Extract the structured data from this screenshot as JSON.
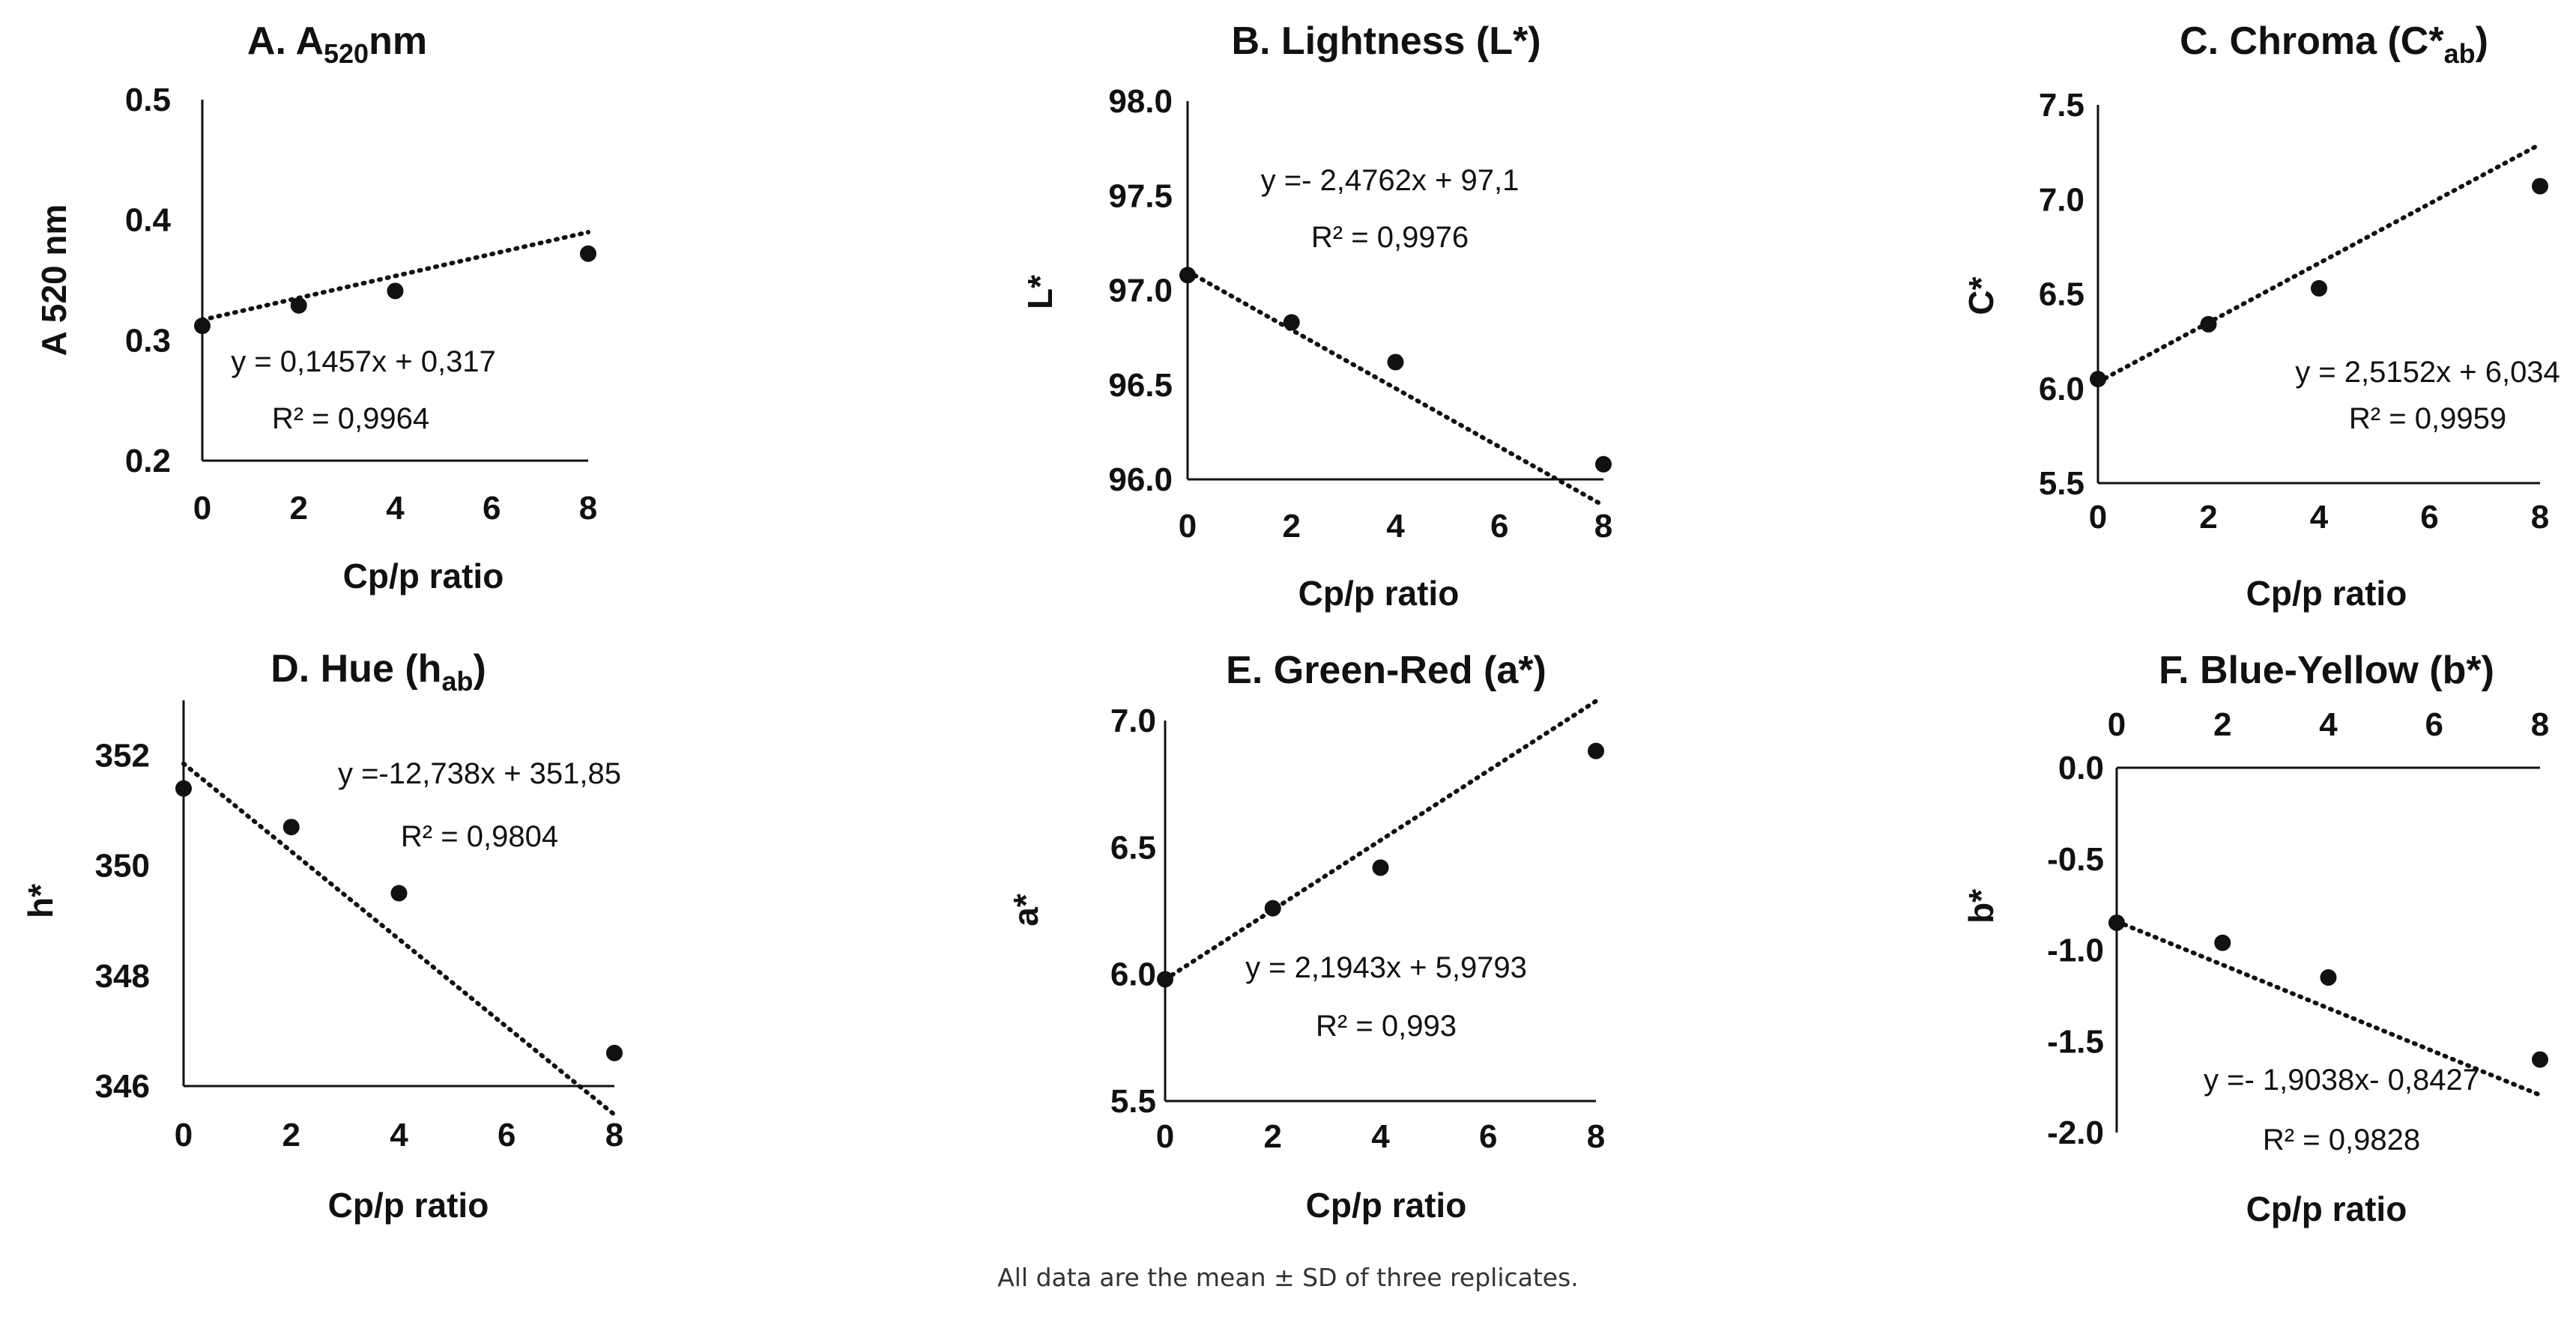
{
  "footnote": "All data are the mean ± SD of three replicates.",
  "colors": {
    "ink": "#111111",
    "background": "#ffffff"
  },
  "chart_data": [
    {
      "type": "scatter",
      "title": "A. A",
      "title_subscript": "520",
      "title_suffix": "nm",
      "xlabel": "Cp/p ratio",
      "ylabel": "A 520 nm",
      "x_ticks": [
        "0",
        "2",
        "4",
        "6",
        "8"
      ],
      "y_ticks": [
        "0.2",
        "0.3",
        "0.4",
        "0.5"
      ],
      "xlim": [
        0,
        8
      ],
      "ylim": [
        0.2,
        0.5
      ],
      "x_axis_position": "bottom",
      "x": [
        0,
        2,
        4,
        8
      ],
      "y": [
        0.312,
        0.329,
        0.341,
        0.372
      ],
      "trendline": {
        "slope": 0.1457,
        "intercept": 0.317,
        "x_scale": 0.0625
      },
      "equation": "y = 0,1457x + 0,317",
      "r2": "R² = 0,9964",
      "grid": false
    },
    {
      "type": "scatter",
      "title": "B. Lightness (L*)",
      "xlabel": "Cp/p ratio",
      "ylabel": "L*",
      "x_ticks": [
        "0",
        "2",
        "4",
        "6",
        "8"
      ],
      "y_ticks": [
        "96.0",
        "96.5",
        "97.0",
        "97.5",
        "98.0"
      ],
      "xlim": [
        0,
        8
      ],
      "ylim": [
        96.0,
        98.0
      ],
      "x_axis_position": "bottom",
      "x": [
        0,
        2,
        4,
        8
      ],
      "y": [
        97.08,
        96.83,
        96.62,
        96.08
      ],
      "trendline": {
        "slope": -2.4762,
        "intercept": 97.1,
        "x_scale": 0.0625
      },
      "equation": "y =- 2,4762x + 97,1",
      "r2": "R² = 0,9976",
      "grid": false
    },
    {
      "type": "scatter",
      "title": "C. Chroma (C*",
      "title_subscript": "ab",
      "title_suffix": ")",
      "xlabel": "Cp/p ratio",
      "ylabel": "C*",
      "x_ticks": [
        "0",
        "2",
        "4",
        "6",
        "8"
      ],
      "y_ticks": [
        "5.5",
        "6.0",
        "6.5",
        "7.0",
        "7.5"
      ],
      "xlim": [
        0,
        8
      ],
      "ylim": [
        5.5,
        7.5
      ],
      "x_axis_position": "bottom",
      "x": [
        0,
        2,
        4,
        8
      ],
      "y": [
        6.05,
        6.34,
        6.53,
        7.07
      ],
      "trendline": {
        "slope": 2.5152,
        "intercept": 6.034,
        "x_scale": 0.0625
      },
      "equation": "y = 2,5152x + 6,034",
      "r2": "R² = 0,9959",
      "grid": false
    },
    {
      "type": "scatter",
      "title": "D. Hue (h",
      "title_subscript": "ab",
      "title_suffix": ")",
      "xlabel": "Cp/p ratio",
      "ylabel": "h*",
      "x_ticks": [
        "0",
        "2",
        "4",
        "6",
        "8"
      ],
      "y_ticks": [
        "346",
        "348",
        "350",
        "352"
      ],
      "xlim": [
        0,
        8
      ],
      "ylim": [
        346,
        353
      ],
      "x_axis_position": "bottom",
      "x": [
        0,
        2,
        4,
        8
      ],
      "y": [
        351.4,
        350.7,
        349.5,
        346.6
      ],
      "trendline": {
        "slope": -12.738,
        "intercept": 351.85,
        "x_scale": 0.0625
      },
      "equation": "y =-12,738x + 351,85",
      "r2": "R² = 0,9804",
      "grid": false
    },
    {
      "type": "scatter",
      "title": "E. Green-Red (a*)",
      "xlabel": "Cp/p ratio",
      "ylabel": "a*",
      "x_ticks": [
        "0",
        "2",
        "4",
        "6",
        "8"
      ],
      "y_ticks": [
        "5.5",
        "6.0",
        "6.5",
        "7.0"
      ],
      "xlim": [
        0,
        8
      ],
      "ylim": [
        5.5,
        7.0
      ],
      "x_axis_position": "bottom",
      "x": [
        0,
        2,
        4,
        8
      ],
      "y": [
        5.98,
        6.26,
        6.42,
        6.88
      ],
      "trendline": {
        "slope": 2.1943,
        "intercept": 5.9793,
        "x_scale": 0.0625
      },
      "equation": "y = 2,1943x + 5,9793",
      "r2": "R² = 0,993",
      "grid": false
    },
    {
      "type": "scatter",
      "title": "F. Blue-Yellow (b*)",
      "xlabel": "Cp/p ratio",
      "ylabel": "b*",
      "x_ticks": [
        "0",
        "2",
        "4",
        "6",
        "8"
      ],
      "y_ticks": [
        "-2.0",
        "-1.5",
        "-1.0",
        "-0.5",
        "0.0"
      ],
      "xlim": [
        0,
        8
      ],
      "ylim": [
        -2.0,
        0.0
      ],
      "x_axis_position": "top",
      "x": [
        0,
        2,
        4,
        8
      ],
      "y": [
        -0.85,
        -0.96,
        -1.15,
        -1.6
      ],
      "trendline": {
        "slope": -1.9038,
        "intercept": -0.8427,
        "x_scale": 0.0625
      },
      "equation": "y =- 1,9038x- 0,8427",
      "r2": "R² = 0,9828",
      "grid": false
    }
  ]
}
